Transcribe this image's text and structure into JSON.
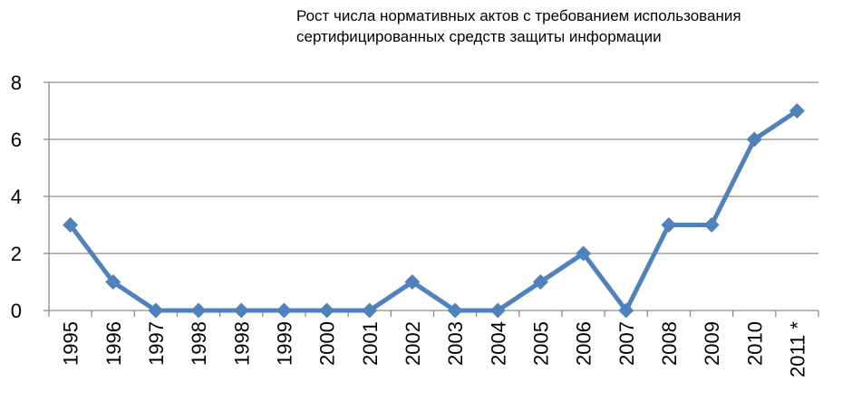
{
  "chart_data": {
    "type": "line",
    "title": "Рост числа нормативных актов с требованием использования\nсертифицированных средств защиты информации",
    "categories": [
      "1995",
      "1996",
      "1997",
      "1998",
      "1998",
      "1999",
      "2000",
      "2001",
      "2002",
      "2003",
      "2004",
      "2005",
      "2006",
      "2007",
      "2008",
      "2009",
      "2010",
      "2011 *"
    ],
    "series": [
      {
        "values": [
          3,
          1,
          0,
          0,
          0,
          0,
          0,
          0,
          1,
          0,
          0,
          1,
          2,
          0,
          3,
          3,
          6,
          7
        ]
      }
    ],
    "ylim": [
      0,
      8
    ],
    "yticks": [
      0,
      2,
      4,
      6,
      8
    ],
    "grid": true,
    "colors": {
      "line": "#4F81BD",
      "grid": "#8C8C8C",
      "axis": "#8C8C8C"
    }
  }
}
